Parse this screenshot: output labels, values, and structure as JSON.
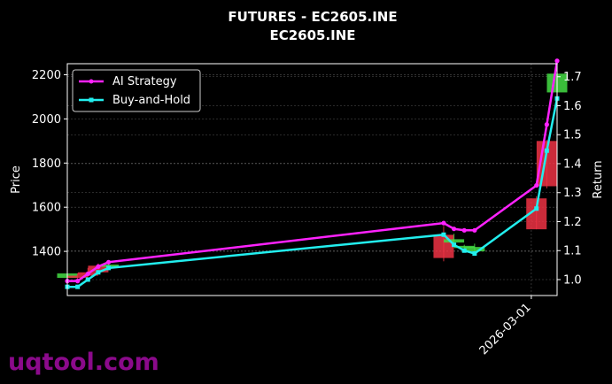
{
  "title": "FUTURES - EC2605.INE",
  "subtitle": "EC2605.INE",
  "watermark": "uqtool.com",
  "chart_data": {
    "type": "line",
    "title": "FUTURES - EC2605.INE",
    "subtitle": "EC2605.INE",
    "xlabel": "",
    "ylabel_left": "Price",
    "ylabel_right": "Return",
    "x_tick_labels": [
      "2026-03-01"
    ],
    "y_left_ticks": [
      "1400",
      "1600",
      "1800",
      "2000",
      "2200"
    ],
    "y_right_ticks": [
      "1.0",
      "1.1",
      "1.2",
      "1.3",
      "1.4",
      "1.5",
      "1.6",
      "1.7"
    ],
    "ylim_left": [
      1200,
      2250
    ],
    "ylim_right": [
      0.945,
      1.745
    ],
    "grid": true,
    "legend_position": "top-left",
    "colors": {
      "ai": "#ff22ff",
      "bh": "#22eeee",
      "up": "#44dd44",
      "down": "#ee3344",
      "grid": "#555555"
    },
    "x": [
      "2025-12-01",
      "2025-12-03",
      "2025-12-05",
      "2025-12-07",
      "2025-12-09",
      "2026-02-12",
      "2026-02-14",
      "2026-02-16",
      "2026-02-18",
      "2026-03-02",
      "2026-03-04",
      "2026-03-06"
    ],
    "candles": [
      {
        "open": 1280,
        "high": 1295,
        "low": 1275,
        "close": 1300
      },
      {
        "open": 1290,
        "high": 1300,
        "low": 1270,
        "close": 1280
      },
      {
        "open": 1305,
        "high": 1325,
        "low": 1285,
        "close": 1290
      },
      {
        "open": 1335,
        "high": 1345,
        "low": 1300,
        "close": 1305
      },
      {
        "open": 1330,
        "high": 1345,
        "low": 1325,
        "close": 1340
      },
      {
        "open": 1475,
        "high": 1515,
        "low": 1355,
        "close": 1370
      },
      {
        "open": 1440,
        "high": 1480,
        "low": 1430,
        "close": 1455
      },
      {
        "open": 1415,
        "high": 1430,
        "low": 1410,
        "close": 1425
      },
      {
        "open": 1400,
        "high": 1435,
        "low": 1390,
        "close": 1420
      },
      {
        "open": 1640,
        "high": 1650,
        "low": 1500,
        "close": 1500
      },
      {
        "open": 1900,
        "high": 1905,
        "low": 1685,
        "close": 1695
      },
      {
        "open": 2120,
        "high": 2210,
        "low": 2115,
        "close": 2205
      }
    ],
    "series": [
      {
        "name": "AI Strategy",
        "values": [
          0.995,
          0.995,
          1.02,
          1.045,
          1.06,
          1.195,
          1.175,
          1.17,
          1.17,
          1.325,
          1.535,
          1.755
        ]
      },
      {
        "name": "Buy-and-Hold",
        "values": [
          0.975,
          0.975,
          1.0,
          1.025,
          1.04,
          1.155,
          1.12,
          1.1,
          1.09,
          1.245,
          1.445,
          1.625
        ]
      }
    ]
  }
}
